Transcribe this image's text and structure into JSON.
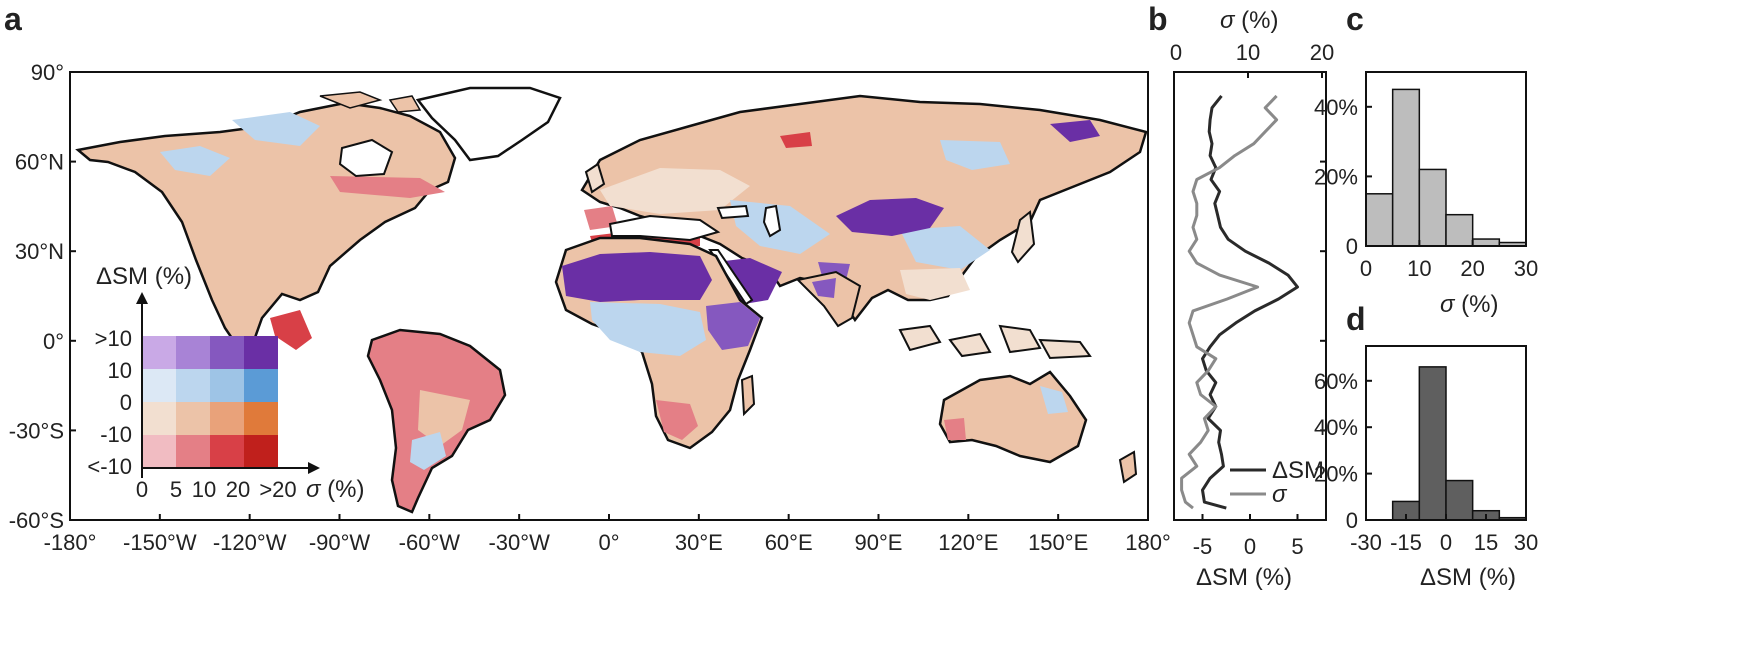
{
  "panels": {
    "a": {
      "label": "a",
      "lat_ticks": [
        "90°",
        "60°N",
        "30°N",
        "0°",
        "-30°S",
        "-60°S"
      ],
      "lon_ticks": [
        "-180°",
        "-150°W",
        "-120°W",
        "-90°W",
        "-60°W",
        "-30°W",
        "0°",
        "30°E",
        "60°E",
        "90°E",
        "120°E",
        "150°E",
        "180°"
      ],
      "legend": {
        "y_title": "ΔSM (%)",
        "x_title_sym": "σ",
        "x_title_unit": " (%)",
        "row_labels": [
          ">10",
          "10",
          "0",
          "-10",
          "<-10"
        ],
        "col_labels": [
          "0",
          "5",
          "10",
          "20",
          ">20"
        ],
        "colors": [
          [
            "#c9a9e6",
            "#a883d6",
            "#8558bf",
            "#6a2fa5"
          ],
          [
            "#dce8f5",
            "#bcd6ee",
            "#9ec4e6",
            "#5b9bd6"
          ],
          [
            "#f2dfd0",
            "#ecc3a8",
            "#e9a27a",
            "#e07a3a"
          ],
          [
            "#f1bcc2",
            "#e47f86",
            "#d84047",
            "#c0201c"
          ]
        ]
      }
    },
    "b": {
      "label": "b",
      "top_axis_sym": "σ",
      "top_axis_unit": " (%)",
      "top_ticks": [
        "0",
        "10",
        "20"
      ],
      "bottom_ticks": [
        "-5",
        "0",
        "5"
      ],
      "bottom_axis": "ΔSM (%)",
      "legend": [
        {
          "name": "ΔSM",
          "color": "#2a2a2a"
        },
        {
          "name": "σ",
          "color": "#8a8a8a",
          "italic": true
        }
      ]
    },
    "c": {
      "label": "c",
      "x_sym": "σ",
      "x_unit": " (%)",
      "x_ticks": [
        "0",
        "10",
        "20",
        "30"
      ],
      "y_ticks": [
        "0",
        "20%",
        "40%"
      ]
    },
    "d": {
      "label": "d",
      "x_label": "ΔSM (%)",
      "x_ticks": [
        "-30",
        "-15",
        "0",
        "15",
        "30"
      ],
      "y_ticks": [
        "0",
        "20%",
        "40%",
        "60%"
      ]
    }
  },
  "chart_data": [
    {
      "type": "heatmap",
      "panel": "a",
      "title": "",
      "xlabel": "",
      "ylabel": "",
      "xlim": [
        -180,
        180
      ],
      "ylim": [
        -60,
        90
      ],
      "legend_bivariate": {
        "y_variable": "ΔSM (%)",
        "x_variable": "σ (%)",
        "y_classes": [
          "<-10",
          "-10–0",
          "0–10",
          ">10"
        ],
        "x_classes": [
          "0–5",
          "5–10",
          "10–20",
          ">20"
        ]
      }
    },
    {
      "type": "line",
      "panel": "b",
      "y_axis": "latitude",
      "ylim": [
        -60,
        90
      ],
      "series": [
        {
          "name": "ΔSM",
          "axis": "bottom",
          "xlim": [
            -8,
            8
          ],
          "lat": [
            82,
            78,
            74,
            70,
            66,
            62,
            58,
            54,
            50,
            46,
            42,
            38,
            34,
            30,
            26,
            22,
            18,
            14,
            10,
            6,
            2,
            -2,
            -6,
            -10,
            -14,
            -18,
            -22,
            -26,
            -30,
            -34,
            -38,
            -42,
            -46,
            -50,
            -54,
            -56
          ],
          "values": [
            -3.0,
            -4.0,
            -4.2,
            -4.3,
            -4.0,
            -4.2,
            -3.6,
            -4.1,
            -3.2,
            -3.7,
            -3.4,
            -3.1,
            -2.3,
            -0.5,
            2.0,
            4.0,
            5.0,
            3.0,
            0.5,
            -1.5,
            -3.2,
            -4.2,
            -5.0,
            -4.6,
            -3.6,
            -4.2,
            -3.6,
            -4.4,
            -3.1,
            -3.3,
            -3.0,
            -2.8,
            -4.2,
            -5.0,
            -4.8,
            -2.5
          ]
        },
        {
          "name": "σ",
          "axis": "top",
          "xlim": [
            0,
            20
          ],
          "lat": [
            82,
            78,
            74,
            70,
            66,
            62,
            58,
            54,
            50,
            46,
            42,
            38,
            34,
            30,
            26,
            22,
            18,
            14,
            10,
            6,
            2,
            -2,
            -6,
            -10,
            -14,
            -18,
            -22,
            -26,
            -30,
            -34,
            -38,
            -42,
            -46,
            -50,
            -54,
            -56
          ],
          "values": [
            13.5,
            12.0,
            13.5,
            12.0,
            10.5,
            8.0,
            6.0,
            3.0,
            2.5,
            3.0,
            3.0,
            2.5,
            3.0,
            2.0,
            3.0,
            6.0,
            11.0,
            7.0,
            2.5,
            2.0,
            2.5,
            3.0,
            5.5,
            4.5,
            3.0,
            3.5,
            5.5,
            4.0,
            4.5,
            3.5,
            2.0,
            3.0,
            1.0,
            1.0,
            1.5,
            2.5
          ]
        }
      ]
    },
    {
      "type": "bar",
      "panel": "c",
      "title": "",
      "xlabel": "σ (%)",
      "ylabel": "",
      "bin_edges": [
        0,
        5,
        10,
        15,
        20,
        25,
        30
      ],
      "values": [
        15,
        45,
        22,
        9,
        2,
        1
      ],
      "xlim": [
        0,
        30
      ],
      "ylim": [
        0,
        50
      ]
    },
    {
      "type": "bar",
      "panel": "d",
      "title": "",
      "xlabel": "ΔSM (%)",
      "ylabel": "",
      "bin_edges": [
        -30,
        -20,
        -10,
        0,
        10,
        20,
        30
      ],
      "values": [
        0,
        8,
        66,
        17,
        4,
        1
      ],
      "xlim": [
        -30,
        30
      ],
      "ylim": [
        0,
        75
      ]
    }
  ]
}
